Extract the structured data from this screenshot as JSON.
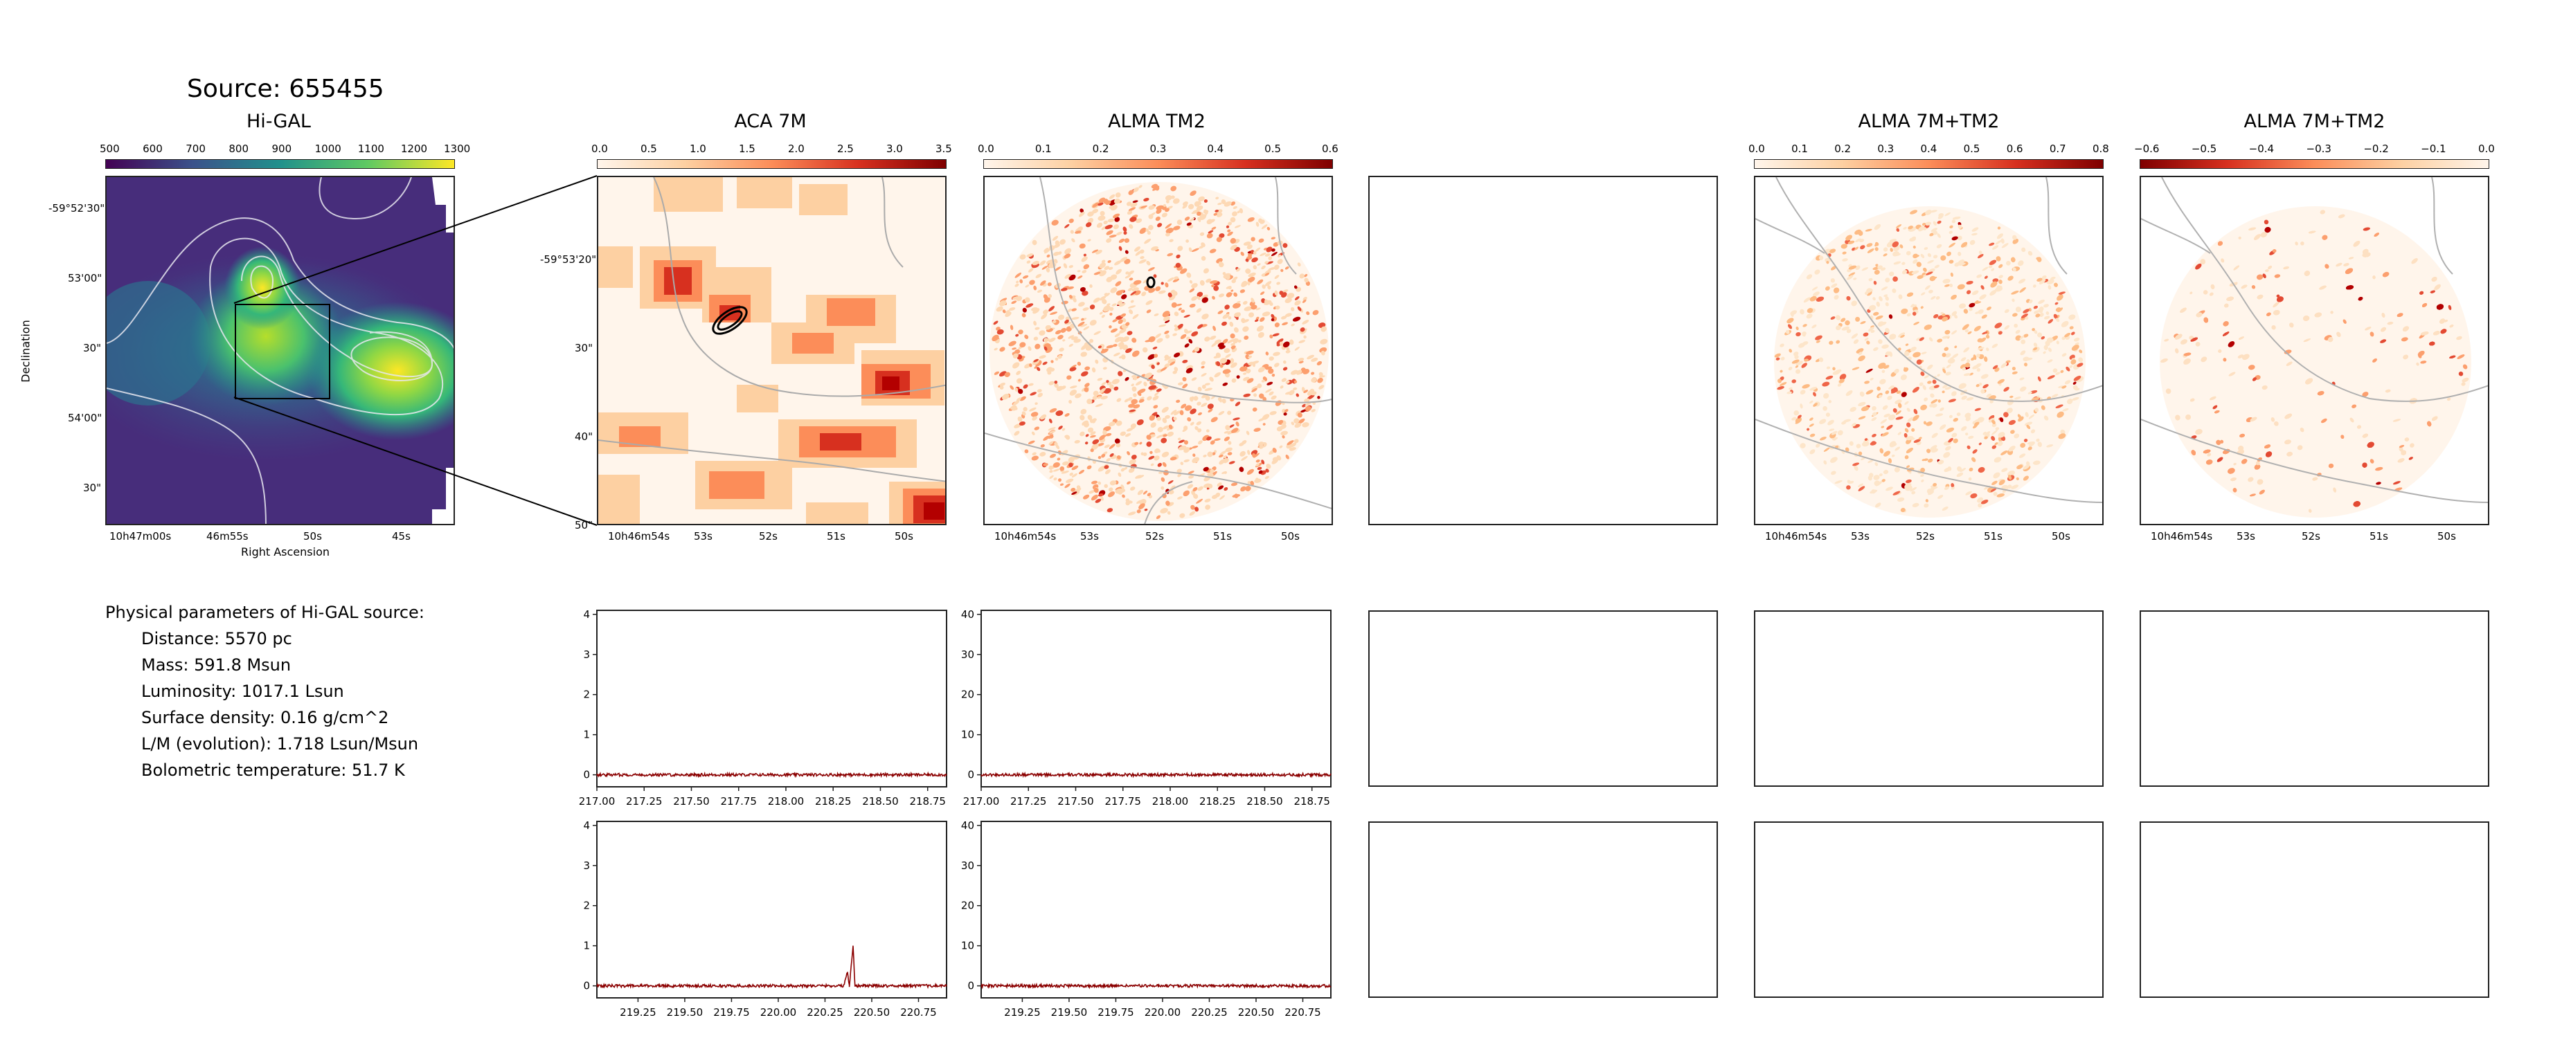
{
  "figure": {
    "source_title": "Source: 655455",
    "params_heading": "Physical parameters of Hi-GAL source:",
    "params": [
      "Distance: 5570 pc",
      "Mass: 591.8 Msun",
      "Luminosity: 1017.1 Lsun",
      "Surface density: 0.16 g/cm^2",
      "L/M (evolution): 1.718 Lsun/Msun",
      "Bolometric temperature: 51.7 K"
    ]
  },
  "panels": {
    "higal": {
      "title": "Hi-GAL",
      "cbar_ticks": [
        "500",
        "600",
        "700",
        "800",
        "900",
        "1000",
        "1100",
        "1200",
        "1300"
      ],
      "dec_ticks": [
        "-59°52'30\"",
        "53'00\"",
        "30\"",
        "54'00\"",
        "30\""
      ],
      "ra_ticks": [
        "10h47m00s",
        "46m55s",
        "50s",
        "45s"
      ],
      "xlabel": "Right Ascension",
      "ylabel": "Declination"
    },
    "aca7m": {
      "title": "ACA 7M",
      "cbar_ticks": [
        "0.0",
        "0.5",
        "1.0",
        "1.5",
        "2.0",
        "2.5",
        "3.0",
        "3.5"
      ],
      "dec_ticks": [
        "-59°53'20\"",
        "30\"",
        "40\"",
        "50\""
      ],
      "ra_ticks": [
        "10h46m54s",
        "53s",
        "52s",
        "51s",
        "50s"
      ]
    },
    "tm2": {
      "title": "ALMA TM2",
      "cbar_ticks": [
        "0.0",
        "0.1",
        "0.2",
        "0.3",
        "0.4",
        "0.5",
        "0.6"
      ],
      "ra_ticks": [
        "10h46m54s",
        "53s",
        "52s",
        "51s",
        "50s"
      ]
    },
    "combo": {
      "title": "ALMA 7M+TM2",
      "cbar_ticks": [
        "0.0",
        "0.1",
        "0.2",
        "0.3",
        "0.4",
        "0.5",
        "0.6",
        "0.7",
        "0.8"
      ],
      "ra_ticks": [
        "10h46m54s",
        "53s",
        "52s",
        "51s",
        "50s"
      ]
    },
    "combo_neg": {
      "title": "ALMA 7M+TM2",
      "cbar_ticks": [
        "−0.6",
        "−0.5",
        "−0.4",
        "−0.3",
        "−0.2",
        "−0.1",
        "0.0"
      ],
      "ra_ticks": [
        "10h46m54s",
        "53s",
        "52s",
        "51s",
        "50s"
      ]
    }
  },
  "chart_data": [
    {
      "type": "line",
      "panel": "spectrum ACA 7M upper band",
      "x_ticks": [
        "217.00",
        "217.25",
        "217.50",
        "217.75",
        "218.00",
        "218.25",
        "218.50",
        "218.75"
      ],
      "y_ticks": [
        "0",
        "1",
        "2",
        "3",
        "4"
      ],
      "xlim": [
        217.0,
        218.85
      ],
      "ylim": [
        -0.3,
        4.1
      ],
      "series": [
        {
          "values": [
            [
              217.0,
              0.0
            ],
            [
              218.85,
              0.0
            ]
          ]
        }
      ]
    },
    {
      "type": "line",
      "panel": "spectrum ALMA TM2 upper band",
      "x_ticks": [
        "217.00",
        "217.25",
        "217.50",
        "217.75",
        "218.00",
        "218.25",
        "218.50",
        "218.75"
      ],
      "y_ticks": [
        "0",
        "10",
        "20",
        "30",
        "40"
      ],
      "xlim": [
        217.0,
        218.85
      ],
      "ylim": [
        -3,
        41
      ],
      "series": [
        {
          "values": [
            [
              217.0,
              0.0
            ],
            [
              218.85,
              0.0
            ]
          ]
        }
      ]
    },
    {
      "type": "line",
      "panel": "spectrum ACA 7M lower band",
      "x_ticks": [
        "219.25",
        "219.50",
        "219.75",
        "220.00",
        "220.25",
        "220.50",
        "220.75"
      ],
      "y_ticks": [
        "0",
        "1",
        "2",
        "3",
        "4"
      ],
      "xlim": [
        219.03,
        220.9
      ],
      "ylim": [
        -0.3,
        4.1
      ],
      "series": [
        {
          "values": [
            [
              219.03,
              0.0
            ],
            [
              220.35,
              0.0
            ],
            [
              220.37,
              0.35
            ],
            [
              220.38,
              0.0
            ],
            [
              220.4,
              1.0
            ],
            [
              220.41,
              0.0
            ],
            [
              220.9,
              0.0
            ]
          ]
        }
      ]
    },
    {
      "type": "line",
      "panel": "spectrum ALMA TM2 lower band",
      "x_ticks": [
        "219.25",
        "219.50",
        "219.75",
        "220.00",
        "220.25",
        "220.50",
        "220.75"
      ],
      "y_ticks": [
        "0",
        "10",
        "20",
        "30",
        "40"
      ],
      "xlim": [
        219.03,
        220.9
      ],
      "ylim": [
        -3,
        41
      ],
      "series": [
        {
          "values": [
            [
              219.03,
              0.0
            ],
            [
              220.9,
              0.0
            ]
          ]
        }
      ]
    }
  ],
  "colors": {
    "viridis": [
      "#440154",
      "#3b528b",
      "#21918c",
      "#5ec962",
      "#fde725"
    ],
    "orrd": [
      "#fff5eb",
      "#fdd0a2",
      "#fc8d59",
      "#d7301f",
      "#7f0000"
    ],
    "spectrum_line": "#8b0000"
  }
}
